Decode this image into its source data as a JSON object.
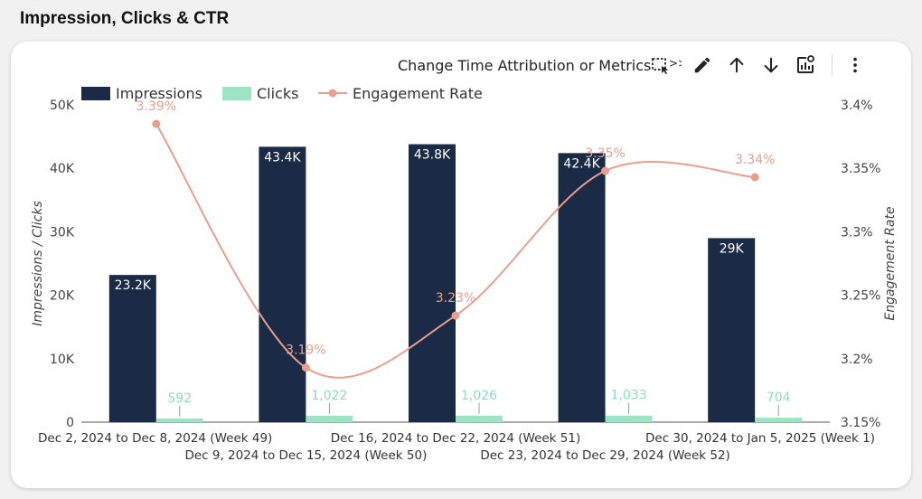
{
  "page": {
    "title": "Impression, Clicks & CTR"
  },
  "toolbar": {
    "change_label": "Change Time Attribution or Metrics",
    "arrow_text": ">>",
    "icons": [
      "select-region-icon",
      "pencil-icon",
      "arrow-up-icon",
      "arrow-down-icon",
      "chart-settings-icon",
      "more-vert-icon"
    ]
  },
  "colors": {
    "impressions": "#1b2b45",
    "clicks": "#9ee3c6",
    "engagement": "#e8a08e",
    "clicks_label": "#8ddcbc",
    "axis_text": "#444444"
  },
  "chart_data": {
    "type": "bar",
    "title": "",
    "categories": [
      "Dec 2, 2024 to Dec 8, 2024 (Week 49)",
      "Dec 9, 2024 to Dec 15, 2024 (Week 50)",
      "Dec 16, 2024 to Dec 22, 2024 (Week 51)",
      "Dec 23, 2024 to Dec 29, 2024 (Week 52)",
      "Dec 30, 2024 to Jan 5, 2025 (Week 1)"
    ],
    "series": [
      {
        "name": "Impressions",
        "type": "bar",
        "axis": "left",
        "values": [
          23200,
          43400,
          43800,
          42400,
          29000
        ],
        "labels": [
          "23.2K",
          "43.4K",
          "43.8K",
          "42.4K",
          "29K"
        ]
      },
      {
        "name": "Clicks",
        "type": "bar",
        "axis": "left",
        "values": [
          592,
          1022,
          1026,
          1033,
          704
        ],
        "labels": [
          "592",
          "1,022",
          "1,026",
          "1,033",
          "704"
        ]
      },
      {
        "name": "Engagement Rate",
        "type": "line",
        "axis": "right",
        "values": [
          3.385,
          3.193,
          3.234,
          3.348,
          3.343
        ],
        "labels": [
          "3.39%",
          "3.19%",
          "3.23%",
          "3.35%",
          "3.34%"
        ]
      }
    ],
    "ylabel": "Impressions / Clicks",
    "y2label": "Engagement Rate",
    "ylim": [
      0,
      50000
    ],
    "y2lim": [
      3.15,
      3.4
    ],
    "yticks": [
      "0",
      "10K",
      "20K",
      "30K",
      "40K",
      "50K"
    ],
    "y2ticks": [
      "3.15%",
      "3.2%",
      "3.25%",
      "3.3%",
      "3.35%",
      "3.4%"
    ],
    "legend": [
      "Impressions",
      "Clicks",
      "Engagement Rate"
    ],
    "legend_position": "top-left",
    "grid": false
  }
}
